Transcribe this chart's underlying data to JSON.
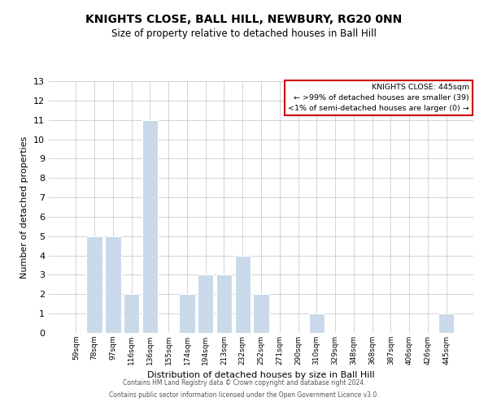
{
  "title": "KNIGHTS CLOSE, BALL HILL, NEWBURY, RG20 0NN",
  "subtitle": "Size of property relative to detached houses in Ball Hill",
  "xlabel": "Distribution of detached houses by size in Ball Hill",
  "ylabel": "Number of detached properties",
  "bar_labels": [
    "59sqm",
    "78sqm",
    "97sqm",
    "116sqm",
    "136sqm",
    "155sqm",
    "174sqm",
    "194sqm",
    "213sqm",
    "232sqm",
    "252sqm",
    "271sqm",
    "290sqm",
    "310sqm",
    "329sqm",
    "348sqm",
    "368sqm",
    "387sqm",
    "406sqm",
    "426sqm",
    "445sqm"
  ],
  "bar_values": [
    0,
    5,
    5,
    2,
    11,
    0,
    2,
    3,
    3,
    4,
    2,
    0,
    0,
    1,
    0,
    0,
    0,
    0,
    0,
    0,
    1
  ],
  "bar_color": "#c9d9ea",
  "grid_color": "#cccccc",
  "ylim": [
    0,
    13
  ],
  "yticks": [
    0,
    1,
    2,
    3,
    4,
    5,
    6,
    7,
    8,
    9,
    10,
    11,
    12,
    13
  ],
  "legend_title": "KNIGHTS CLOSE: 445sqm",
  "legend_line1": "← >99% of detached houses are smaller (39)",
  "legend_line2": "<1% of semi-detached houses are larger (0) →",
  "legend_box_color": "#cc0000",
  "footnote1": "Contains HM Land Registry data © Crown copyright and database right 2024.",
  "footnote2": "Contains public sector information licensed under the Open Government Licence v3.0."
}
